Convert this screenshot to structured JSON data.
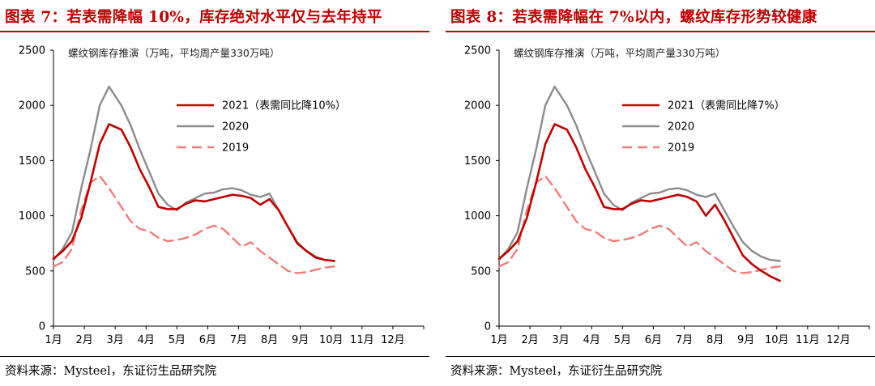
{
  "charts": [
    {
      "figure_title": "图表 7：若表需降幅 10%，库存绝对水平仅与去年持平",
      "source": "资料来源：Mysteel，东证衍生品研究院",
      "chart_data": {
        "type": "line",
        "title": "螺纹钢库存推演（万吨，平均周产量330万吨）",
        "xlabel": "",
        "ylabel": "",
        "categories": [
          "1月",
          "2月",
          "3月",
          "4月",
          "5月",
          "6月",
          "7月",
          "8月",
          "9月",
          "10月",
          "11月",
          "12月"
        ],
        "ylim": [
          0,
          2500
        ],
        "yticks": [
          0,
          500,
          1000,
          1500,
          2000,
          2500
        ],
        "grid": false,
        "legend": "upper-right",
        "x": [
          0,
          0.3,
          0.6,
          0.9,
          1.2,
          1.5,
          1.8,
          2.2,
          2.5,
          2.8,
          3.1,
          3.4,
          3.7,
          4.0,
          4.3,
          4.6,
          4.9,
          5.2,
          5.5,
          5.8,
          6.1,
          6.4,
          6.7,
          7.0,
          7.3,
          7.6,
          7.9,
          8.2,
          8.5,
          8.8,
          9.1,
          9.4,
          9.7,
          10.0,
          10.3,
          10.6,
          10.9,
          11.2,
          11.5,
          11.8,
          12.1
        ],
        "series": [
          {
            "name": "2021（表需同比降10%）",
            "color": "#c00000",
            "style": "solid",
            "values": [
              610,
              680,
              770,
              980,
              1300,
              1650,
              1830,
              1780,
              1620,
              1420,
              1260,
              1080,
              1060,
              1060,
              1110,
              1140,
              1130,
              1150,
              1170,
              1190,
              1180,
              1160,
              1100,
              1150,
              1050,
              900,
              750,
              680,
              620,
              600,
              590,
              null,
              null,
              null,
              null,
              null,
              null,
              null,
              null,
              null,
              null
            ]
          },
          {
            "name": "2020",
            "color": "#8c8c8c",
            "style": "solid",
            "values": [
              600,
              700,
              850,
              1250,
              1600,
              2000,
              2170,
              2000,
              1820,
              1600,
              1400,
              1200,
              1100,
              1050,
              1120,
              1160,
              1200,
              1210,
              1240,
              1250,
              1230,
              1190,
              1170,
              1200,
              1050,
              900,
              760,
              680,
              630,
              600,
              590,
              null,
              null,
              null,
              null,
              null,
              null,
              null,
              null,
              null,
              null
            ]
          },
          {
            "name": "2019",
            "color": "#f47b7b",
            "style": "dashed",
            "values": [
              540,
              580,
              700,
              1050,
              1300,
              1360,
              1250,
              1080,
              950,
              880,
              860,
              800,
              770,
              780,
              800,
              830,
              880,
              910,
              880,
              800,
              720,
              760,
              680,
              620,
              560,
              500,
              480,
              490,
              510,
              530,
              540,
              null,
              null,
              null,
              null,
              null,
              null,
              null,
              null,
              null,
              null
            ]
          }
        ]
      }
    },
    {
      "figure_title": "图表 8：若表需降幅在 7%以内，螺纹库存形势较健康",
      "source": "资料来源：Mysteel，东证衍生品研究院",
      "chart_data": {
        "type": "line",
        "title": "螺纹钢库存推演（万吨，平均周产量330万吨）",
        "xlabel": "",
        "ylabel": "",
        "categories": [
          "1月",
          "2月",
          "3月",
          "4月",
          "5月",
          "6月",
          "7月",
          "8月",
          "9月",
          "10月",
          "11月",
          "12月"
        ],
        "ylim": [
          0,
          2500
        ],
        "yticks": [
          0,
          500,
          1000,
          1500,
          2000,
          2500
        ],
        "grid": false,
        "legend": "upper-right",
        "x": [
          0,
          0.3,
          0.6,
          0.9,
          1.2,
          1.5,
          1.8,
          2.2,
          2.5,
          2.8,
          3.1,
          3.4,
          3.7,
          4.0,
          4.3,
          4.6,
          4.9,
          5.2,
          5.5,
          5.8,
          6.1,
          6.4,
          6.7,
          7.0,
          7.3,
          7.6,
          7.9,
          8.2,
          8.5,
          8.8,
          9.1,
          9.4,
          9.7,
          10.0,
          10.3,
          10.6,
          10.9,
          11.2,
          11.5,
          11.8,
          12.1
        ],
        "series": [
          {
            "name": "2021（表需同比降7%）",
            "color": "#c00000",
            "style": "solid",
            "values": [
              610,
              680,
              770,
              980,
              1300,
              1650,
              1830,
              1780,
              1620,
              1420,
              1260,
              1080,
              1060,
              1060,
              1110,
              1140,
              1130,
              1150,
              1170,
              1190,
              1170,
              1130,
              1000,
              1100,
              960,
              800,
              640,
              560,
              500,
              450,
              410,
              null,
              null,
              null,
              null,
              null,
              null,
              null,
              null,
              null,
              null
            ]
          },
          {
            "name": "2020",
            "color": "#8c8c8c",
            "style": "solid",
            "values": [
              600,
              700,
              850,
              1250,
              1600,
              2000,
              2170,
              2000,
              1820,
              1600,
              1400,
              1200,
              1100,
              1050,
              1120,
              1160,
              1200,
              1210,
              1240,
              1250,
              1230,
              1190,
              1170,
              1200,
              1050,
              900,
              760,
              680,
              630,
              600,
              590,
              null,
              null,
              null,
              null,
              null,
              null,
              null,
              null,
              null,
              null
            ]
          },
          {
            "name": "2019",
            "color": "#f47b7b",
            "style": "dashed",
            "values": [
              540,
              580,
              700,
              1050,
              1300,
              1360,
              1250,
              1080,
              950,
              880,
              860,
              800,
              770,
              780,
              800,
              830,
              880,
              910,
              880,
              800,
              720,
              760,
              680,
              620,
              560,
              500,
              480,
              490,
              510,
              530,
              540,
              null,
              null,
              null,
              null,
              null,
              null,
              null,
              null,
              null,
              null
            ]
          }
        ]
      }
    }
  ]
}
